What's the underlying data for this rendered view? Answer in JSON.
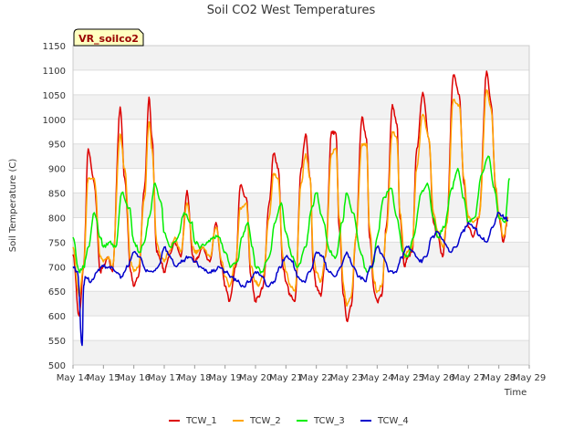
{
  "chart_data": {
    "type": "line",
    "title": "Soil CO2 West Temperatures",
    "xlabel": "Time",
    "ylabel": "Soil Temperature (C)",
    "site_label": "VR_soilco2",
    "ylim": [
      500,
      1150
    ],
    "xlim": [
      14,
      29
    ],
    "y_ticks": [
      500,
      550,
      600,
      650,
      700,
      750,
      800,
      850,
      900,
      950,
      1000,
      1050,
      1100,
      1150
    ],
    "x_ticks": [
      {
        "day": 14,
        "label": "May 14"
      },
      {
        "day": 15,
        "label": "May 15"
      },
      {
        "day": 16,
        "label": "May 16"
      },
      {
        "day": 17,
        "label": "May 17"
      },
      {
        "day": 18,
        "label": "May 18"
      },
      {
        "day": 19,
        "label": "May 19"
      },
      {
        "day": 20,
        "label": "May 20"
      },
      {
        "day": 21,
        "label": "May 21"
      },
      {
        "day": 22,
        "label": "May 22"
      },
      {
        "day": 23,
        "label": "May 23"
      },
      {
        "day": 24,
        "label": "May 24"
      },
      {
        "day": 25,
        "label": "May 25"
      },
      {
        "day": 26,
        "label": "May 26"
      },
      {
        "day": 27,
        "label": "May 27"
      },
      {
        "day": 28,
        "label": "May 28"
      },
      {
        "day": 29,
        "label": "May 29"
      }
    ],
    "grid": true,
    "banded_background": true,
    "legend_position": "bottom",
    "series": [
      {
        "name": "TCW_1",
        "color": "#dd0000",
        "x": [
          14.0,
          14.2,
          14.35,
          14.5,
          14.7,
          14.9,
          15.0,
          15.15,
          15.3,
          15.55,
          15.7,
          15.9,
          16.0,
          16.15,
          16.35,
          16.5,
          16.6,
          16.75,
          16.9,
          17.0,
          17.15,
          17.35,
          17.55,
          17.75,
          17.95,
          18.0,
          18.1,
          18.25,
          18.5,
          18.7,
          18.9,
          19.0,
          19.15,
          19.35,
          19.5,
          19.7,
          19.85,
          20.0,
          20.1,
          20.25,
          20.45,
          20.6,
          20.75,
          20.9,
          21.0,
          21.15,
          21.3,
          21.5,
          21.65,
          21.8,
          21.9,
          22.0,
          22.15,
          22.3,
          22.5,
          22.65,
          22.75,
          22.9,
          23.0,
          23.15,
          23.3,
          23.5,
          23.65,
          23.75,
          23.9,
          24.0,
          24.15,
          24.3,
          24.5,
          24.65,
          24.75,
          24.9,
          25.0,
          25.15,
          25.3,
          25.5,
          25.7,
          25.85,
          26.0,
          26.15,
          26.3,
          26.5,
          26.7,
          26.85,
          27.0,
          27.15,
          27.35,
          27.6,
          27.75,
          27.9,
          28.0,
          28.15,
          28.3
        ],
        "values": [
          725,
          600,
          700,
          940,
          870,
          690,
          700,
          720,
          690,
          1025,
          880,
          690,
          660,
          680,
          860,
          1045,
          960,
          730,
          710,
          690,
          720,
          750,
          720,
          855,
          720,
          710,
          720,
          740,
          710,
          790,
          700,
          660,
          630,
          700,
          865,
          840,
          680,
          630,
          640,
          660,
          830,
          930,
          900,
          700,
          670,
          640,
          630,
          900,
          970,
          880,
          700,
          660,
          640,
          720,
          975,
          970,
          780,
          640,
          590,
          620,
          760,
          1005,
          960,
          760,
          650,
          630,
          640,
          780,
          1030,
          990,
          800,
          700,
          720,
          730,
          940,
          1055,
          960,
          790,
          760,
          720,
          800,
          1090,
          1050,
          870,
          780,
          760,
          800,
          1098,
          1030,
          850,
          800,
          750,
          800
        ]
      },
      {
        "name": "TCW_2",
        "color": "#ffa500",
        "x": [
          14.0,
          14.2,
          14.35,
          14.5,
          14.7,
          14.9,
          15.0,
          15.15,
          15.3,
          15.55,
          15.7,
          15.9,
          16.0,
          16.15,
          16.35,
          16.5,
          16.6,
          16.75,
          16.9,
          17.0,
          17.15,
          17.35,
          17.55,
          17.75,
          17.95,
          18.0,
          18.1,
          18.25,
          18.5,
          18.7,
          18.9,
          19.0,
          19.15,
          19.35,
          19.5,
          19.7,
          19.85,
          20.0,
          20.1,
          20.25,
          20.45,
          20.6,
          20.75,
          20.9,
          21.0,
          21.15,
          21.3,
          21.5,
          21.65,
          21.8,
          21.9,
          22.0,
          22.15,
          22.3,
          22.5,
          22.65,
          22.75,
          22.9,
          23.0,
          23.15,
          23.3,
          23.5,
          23.65,
          23.75,
          23.9,
          24.0,
          24.15,
          24.3,
          24.5,
          24.65,
          24.75,
          24.9,
          25.0,
          25.15,
          25.3,
          25.5,
          25.7,
          25.85,
          26.0,
          26.15,
          26.3,
          26.5,
          26.7,
          26.85,
          27.0,
          27.15,
          27.35,
          27.6,
          27.75,
          27.9,
          28.0,
          28.15,
          28.3
        ],
        "values": [
          740,
          640,
          700,
          880,
          880,
          720,
          710,
          720,
          700,
          970,
          900,
          710,
          690,
          700,
          840,
          995,
          940,
          750,
          720,
          710,
          730,
          760,
          730,
          830,
          740,
          730,
          730,
          740,
          720,
          780,
          710,
          680,
          660,
          710,
          820,
          830,
          700,
          670,
          660,
          680,
          800,
          890,
          880,
          720,
          690,
          660,
          650,
          870,
          930,
          880,
          720,
          690,
          670,
          720,
          930,
          940,
          800,
          660,
          620,
          640,
          760,
          950,
          950,
          780,
          670,
          650,
          660,
          770,
          975,
          960,
          810,
          720,
          730,
          740,
          900,
          1010,
          960,
          810,
          770,
          740,
          790,
          1040,
          1030,
          880,
          800,
          790,
          800,
          1060,
          1020,
          860,
          810,
          760,
          800
        ]
      },
      {
        "name": "TCW_3",
        "color": "#00ee00",
        "x": [
          14.0,
          14.2,
          14.35,
          14.5,
          14.7,
          14.9,
          15.0,
          15.2,
          15.4,
          15.6,
          15.85,
          16.0,
          16.2,
          16.35,
          16.5,
          16.7,
          16.9,
          17.0,
          17.2,
          17.45,
          17.65,
          17.9,
          18.0,
          18.2,
          18.4,
          18.6,
          18.8,
          19.0,
          19.2,
          19.4,
          19.55,
          19.75,
          19.9,
          20.0,
          20.2,
          20.45,
          20.65,
          20.85,
          21.0,
          21.2,
          21.4,
          21.65,
          21.85,
          22.0,
          22.2,
          22.45,
          22.65,
          22.85,
          23.0,
          23.2,
          23.45,
          23.65,
          23.85,
          24.0,
          24.2,
          24.45,
          24.65,
          24.85,
          25.0,
          25.2,
          25.45,
          25.65,
          25.85,
          26.0,
          26.2,
          26.45,
          26.65,
          26.85,
          27.0,
          27.2,
          27.45,
          27.65,
          27.85,
          28.0,
          28.2,
          28.35
        ],
        "values": [
          760,
          690,
          700,
          740,
          810,
          760,
          740,
          750,
          740,
          850,
          820,
          750,
          730,
          750,
          800,
          870,
          830,
          770,
          740,
          760,
          810,
          790,
          750,
          740,
          750,
          760,
          760,
          730,
          700,
          710,
          760,
          790,
          740,
          700,
          690,
          720,
          790,
          830,
          770,
          720,
          700,
          740,
          820,
          850,
          800,
          730,
          720,
          790,
          850,
          810,
          730,
          690,
          700,
          760,
          840,
          860,
          800,
          730,
          720,
          760,
          850,
          870,
          800,
          760,
          780,
          860,
          900,
          840,
          790,
          800,
          890,
          925,
          860,
          800,
          790,
          880
        ]
      },
      {
        "name": "TCW_4",
        "color": "#0000cc",
        "x": [
          14.0,
          14.15,
          14.3,
          14.35,
          14.4,
          14.6,
          14.8,
          15.0,
          15.2,
          15.4,
          15.6,
          15.8,
          16.0,
          16.2,
          16.4,
          16.6,
          16.8,
          17.0,
          17.2,
          17.4,
          17.6,
          17.8,
          18.0,
          18.2,
          18.4,
          18.6,
          18.8,
          19.0,
          19.2,
          19.4,
          19.6,
          19.8,
          20.0,
          20.2,
          20.4,
          20.6,
          20.8,
          21.0,
          21.2,
          21.4,
          21.6,
          21.8,
          22.0,
          22.2,
          22.4,
          22.6,
          22.8,
          23.0,
          23.2,
          23.4,
          23.6,
          23.8,
          24.0,
          24.2,
          24.4,
          24.6,
          24.8,
          25.0,
          25.2,
          25.4,
          25.6,
          25.8,
          26.0,
          26.2,
          26.4,
          26.6,
          26.8,
          27.0,
          27.2,
          27.4,
          27.6,
          27.8,
          28.0,
          28.2,
          28.3
        ],
        "values": [
          700,
          690,
          540,
          660,
          680,
          670,
          690,
          700,
          700,
          690,
          680,
          700,
          730,
          720,
          690,
          690,
          700,
          740,
          720,
          700,
          710,
          720,
          710,
          700,
          690,
          690,
          700,
          690,
          680,
          670,
          660,
          670,
          690,
          680,
          660,
          670,
          700,
          720,
          710,
          680,
          670,
          690,
          730,
          720,
          690,
          680,
          700,
          730,
          700,
          680,
          670,
          700,
          740,
          720,
          690,
          690,
          720,
          740,
          730,
          710,
          720,
          760,
          770,
          750,
          730,
          740,
          770,
          790,
          780,
          760,
          750,
          780,
          810,
          800,
          795
        ]
      }
    ],
    "legend": [
      "TCW_1",
      "TCW_2",
      "TCW_3",
      "TCW_4"
    ]
  }
}
